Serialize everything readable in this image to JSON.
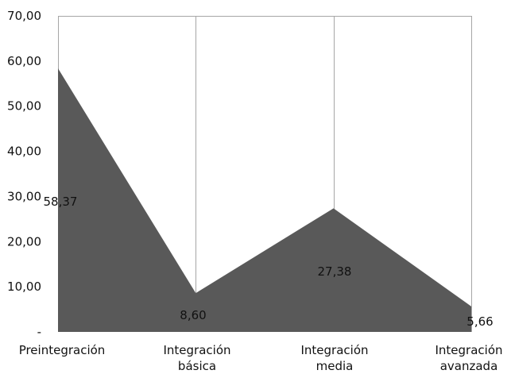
{
  "chart_data": {
    "type": "area",
    "categories": [
      [
        "Preintegración"
      ],
      [
        "Integración",
        "básica"
      ],
      [
        "Integración",
        "media"
      ],
      [
        "Integración",
        "avanzada"
      ]
    ],
    "values": [
      58.37,
      8.6,
      27.38,
      5.66
    ],
    "data_labels": [
      "58,37",
      "8,60",
      "27,38",
      "5,66"
    ],
    "yticks": [
      "-",
      "10,00",
      "20,00",
      "30,00",
      "40,00",
      "50,00",
      "60,00",
      "70,00"
    ],
    "ylim": [
      0,
      70
    ],
    "grid": "vertical",
    "area_color": "#595959",
    "grid_color": "#a6a6a6",
    "text_color": "#111111"
  }
}
